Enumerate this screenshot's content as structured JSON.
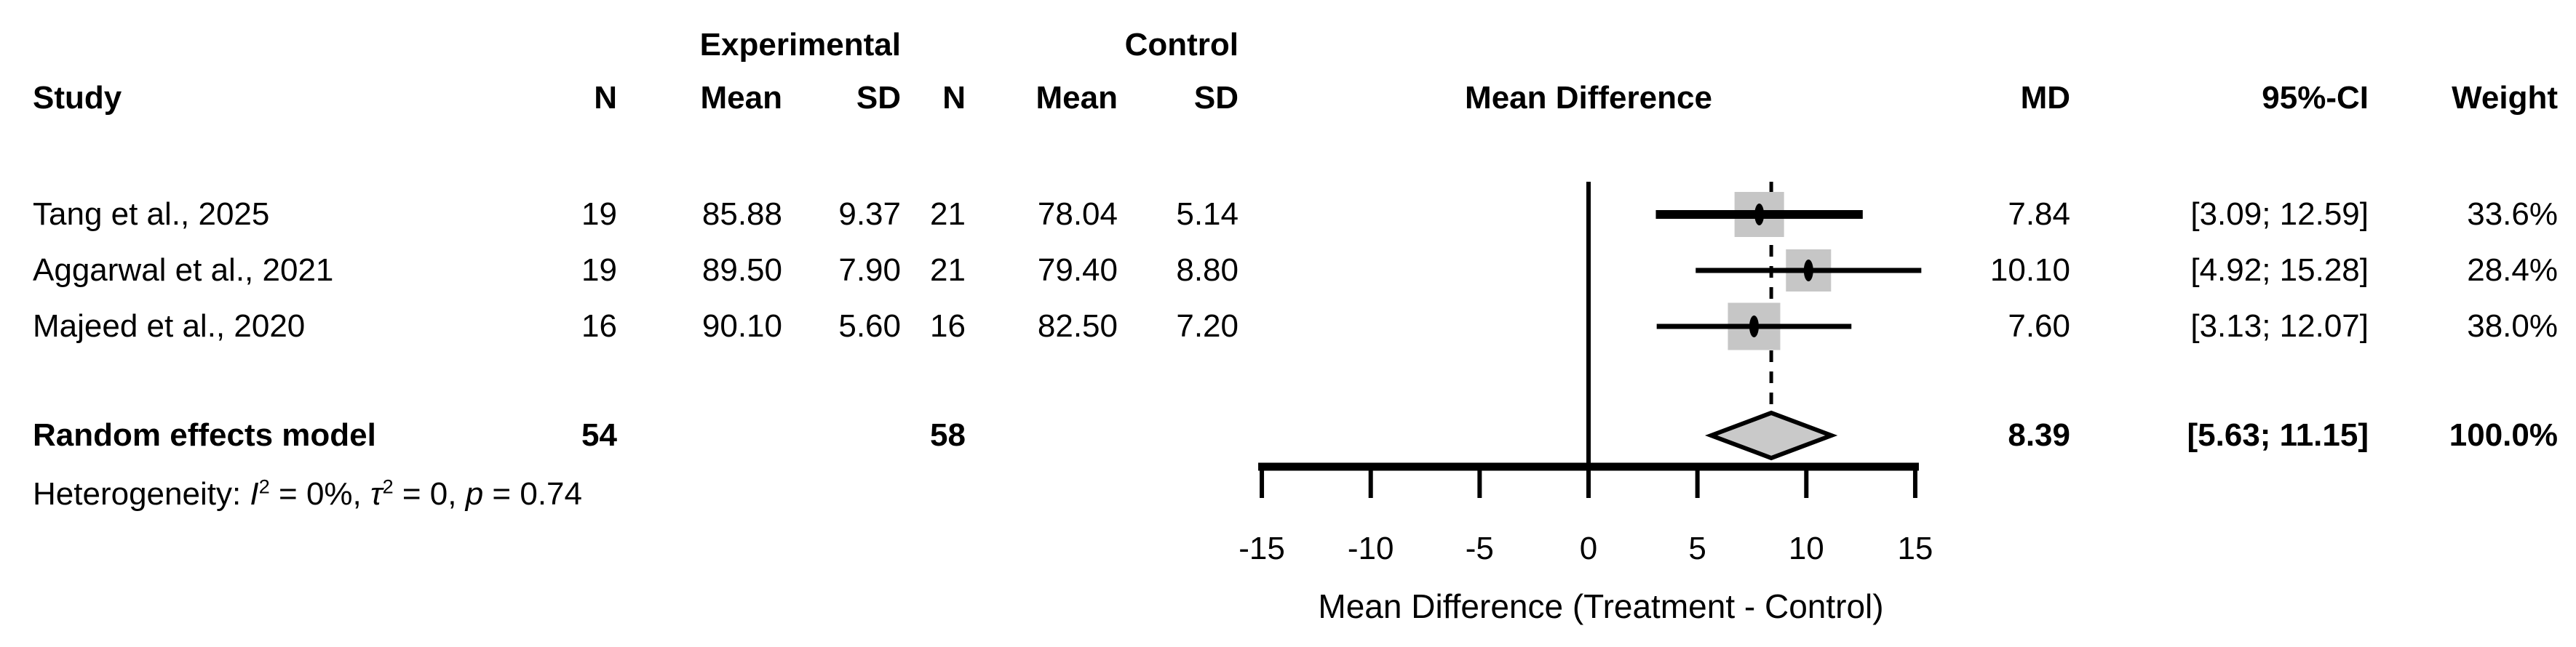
{
  "header": {
    "study": "Study",
    "group_experimental": "Experimental",
    "group_control": "Control",
    "n_exp": "N",
    "mean_exp": "Mean",
    "sd_exp": "SD",
    "n_ctl": "N",
    "mean_ctl": "Mean",
    "sd_ctl": "SD",
    "plot_title": "Mean Difference",
    "md": "MD",
    "ci": "95%-CI",
    "weight": "Weight"
  },
  "studies": [
    {
      "name": "Tang et al., 2025",
      "n_exp": "19",
      "mean_exp": "85.88",
      "sd_exp": "9.37",
      "n_ctl": "21",
      "mean_ctl": "78.04",
      "sd_ctl": "5.14",
      "md": "7.84",
      "ci": "[3.09; 12.59]",
      "weight": "33.6%"
    },
    {
      "name": "Aggarwal et al., 2021",
      "n_exp": "19",
      "mean_exp": "89.50",
      "sd_exp": "7.90",
      "n_ctl": "21",
      "mean_ctl": "79.40",
      "sd_ctl": "8.80",
      "md": "10.10",
      "ci": "[4.92; 15.28]",
      "weight": "28.4%"
    },
    {
      "name": "Majeed et al., 2020",
      "n_exp": "16",
      "mean_exp": "90.10",
      "sd_exp": "5.60",
      "n_ctl": "16",
      "mean_ctl": "82.50",
      "sd_ctl": "7.20",
      "md": "7.60",
      "ci": "[3.13; 12.07]",
      "weight": "38.0%"
    }
  ],
  "summary": {
    "label": "Random effects model",
    "n_exp": "54",
    "n_ctl": "58",
    "md": "8.39",
    "ci": "[5.63; 11.15]",
    "weight": "100.0%"
  },
  "heterogeneity": {
    "prefix": "Heterogeneity: ",
    "i_symbol": "I",
    "sup": "2",
    "i_value": " = 0%, ",
    "tau_symbol": "τ",
    "tau_value": " = 0, ",
    "p_symbol": "p",
    "p_value": " = 0.74"
  },
  "axis": {
    "tick_labels": [
      "-15",
      "-10",
      "-5",
      "0",
      "5",
      "10",
      "15"
    ],
    "title": "Mean Difference (Treatment - Control)"
  },
  "chart_data": {
    "type": "forest",
    "effect_measure": "Mean Difference",
    "model": "Random effects",
    "studies": [
      {
        "study": "Tang et al., 2025",
        "n_exp": 19,
        "mean_exp": 85.88,
        "sd_exp": 9.37,
        "n_ctl": 21,
        "mean_ctl": 78.04,
        "sd_ctl": 5.14,
        "md": 7.84,
        "ci_lower": 3.09,
        "ci_upper": 12.59,
        "weight_pct": 33.6
      },
      {
        "study": "Aggarwal et al., 2021",
        "n_exp": 19,
        "mean_exp": 89.5,
        "sd_exp": 7.9,
        "n_ctl": 21,
        "mean_ctl": 79.4,
        "sd_ctl": 8.8,
        "md": 10.1,
        "ci_lower": 4.92,
        "ci_upper": 15.28,
        "weight_pct": 28.4
      },
      {
        "study": "Majeed et al., 2020",
        "n_exp": 16,
        "mean_exp": 90.1,
        "sd_exp": 5.6,
        "n_ctl": 16,
        "mean_ctl": 82.5,
        "sd_ctl": 7.2,
        "md": 7.6,
        "ci_lower": 3.13,
        "ci_upper": 12.07,
        "weight_pct": 38.0
      }
    ],
    "summary": {
      "md": 8.39,
      "ci_lower": 5.63,
      "ci_upper": 11.15,
      "weight_pct": 100.0,
      "n_exp_total": 54,
      "n_ctl_total": 58
    },
    "heterogeneity": {
      "I2": "0%",
      "tau2": 0,
      "p": 0.74
    },
    "xaxis": {
      "ticks": [
        -15,
        -10,
        -5,
        0,
        5,
        10,
        15
      ],
      "range": [
        -15,
        15
      ],
      "label": "Mean Difference (Treatment - Control)",
      "reference_line": 0,
      "summary_dashed_line": 8.39
    },
    "colors": {
      "marker_fill": "#c6c6c6",
      "diamond_fill": "#c9c9c9",
      "line": "#000000"
    }
  }
}
